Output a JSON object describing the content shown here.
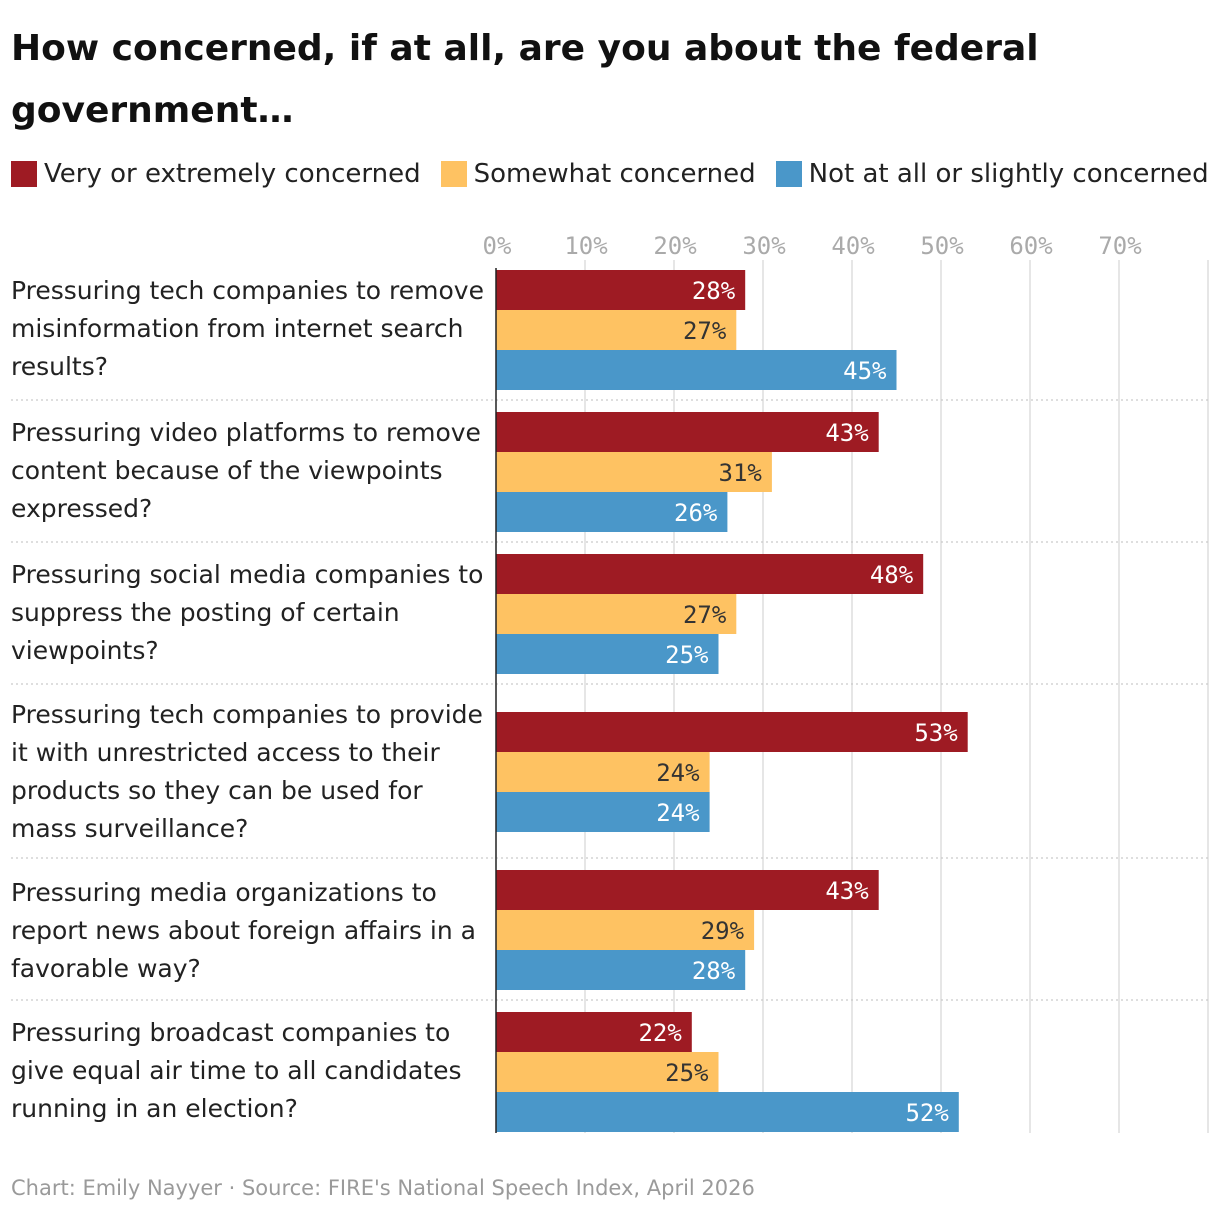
{
  "title": "How concerned, if at all, are you about the federal government…",
  "footer": "Chart: Emily Nayyer · Source: FIRE's National Speech Index, April 2026",
  "colors": {
    "very": "#9e1b23",
    "somewhat": "#fec262",
    "not": "#4a97c9",
    "gridline": "#dedede",
    "tick_label": "#aaaaaa",
    "label_light": "#ffffff",
    "label_dark": "#333333"
  },
  "legend": [
    {
      "label": "Very or extremely concerned",
      "color": "#9e1b23"
    },
    {
      "label": "Somewhat concerned",
      "color": "#fec262"
    },
    {
      "label": "Not at all or slightly concerned",
      "color": "#4a97c9"
    }
  ],
  "chart_data": {
    "type": "bar",
    "orientation": "horizontal",
    "grouped": true,
    "title": "How concerned, if at all, are you about the federal government…",
    "categories": [
      "Pressuring tech companies to remove misinformation from internet search results?",
      "Pressuring video platforms to remove content because of the viewpoints expressed?",
      "Pressuring social media companies to suppress the posting of certain viewpoints?",
      "Pressuring tech companies to provide it with unrestricted access to their products so they can be used for mass surveillance?",
      "Pressuring media organizations to report news about foreign affairs in a favorable way?",
      "Pressuring broadcast companies to give equal air time to all candidates running in an election?"
    ],
    "series": [
      {
        "name": "Very or extremely concerned",
        "color": "#9e1b23",
        "values": [
          28,
          43,
          48,
          53,
          43,
          22
        ]
      },
      {
        "name": "Somewhat concerned",
        "color": "#fec262",
        "values": [
          27,
          31,
          27,
          24,
          29,
          25
        ]
      },
      {
        "name": "Not at all or slightly concerned",
        "color": "#4a97c9",
        "values": [
          45,
          26,
          25,
          24,
          28,
          52
        ]
      }
    ],
    "x_ticks": [
      "0%",
      "10%",
      "20%",
      "30%",
      "40%",
      "50%",
      "60%",
      "70%"
    ],
    "x_tick_values": [
      0,
      10,
      20,
      30,
      40,
      50,
      60,
      70
    ],
    "xlim": [
      0,
      80
    ],
    "value_suffix": "%",
    "grid": true,
    "legend_position": "top-left"
  }
}
